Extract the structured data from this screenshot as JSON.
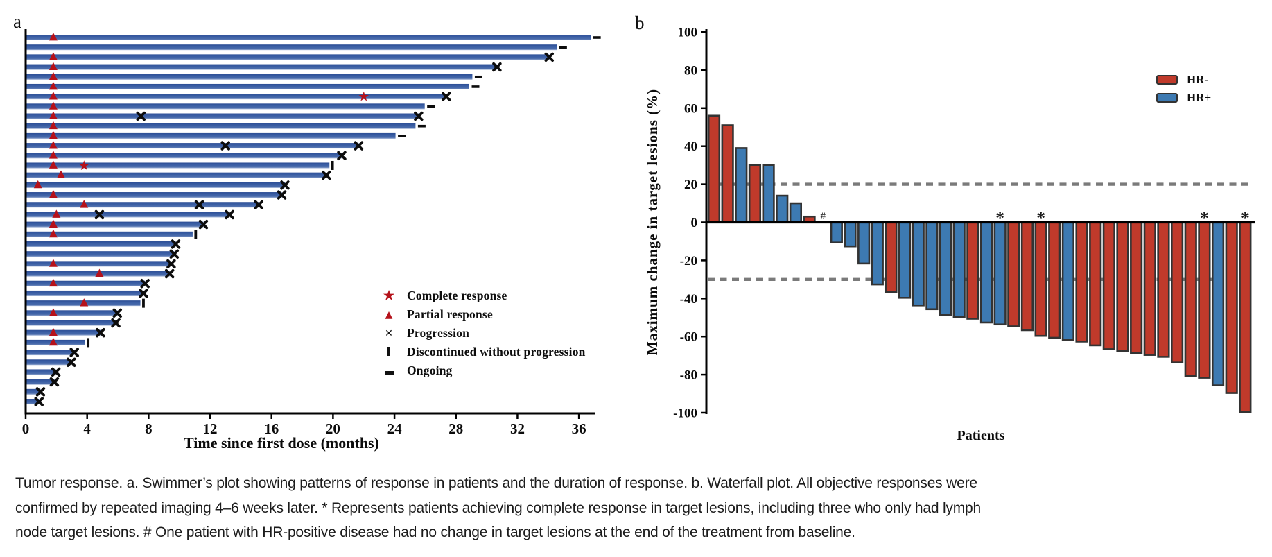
{
  "figure": {
    "panel_a_label": "a",
    "panel_b_label": "b"
  },
  "panel_a": {
    "x_axis_title": "Time since first dose (months)",
    "bar_color": "#3b5fa4",
    "legend": [
      {
        "icon": "complete-response-star-icon",
        "glyph": "★",
        "color": "#b5121b",
        "label": "Complete response"
      },
      {
        "icon": "partial-response-triangle-icon",
        "glyph": "▲",
        "color": "#b5121b",
        "label": "Partial response"
      },
      {
        "icon": "progression-x-icon",
        "glyph": "✕",
        "color": "#111111",
        "label": "Progression"
      },
      {
        "icon": "discontinued-bar-icon",
        "glyph": "",
        "color": "#111111",
        "label": "Discontinued without progression"
      },
      {
        "icon": "ongoing-dash-icon",
        "glyph": "",
        "color": "#111111",
        "label": "Ongoing"
      }
    ]
  },
  "panel_b": {
    "y_axis_title": "Maximum change in target lesions (%)",
    "x_axis_title": "Patients",
    "legend": [
      {
        "icon": "hr-negative-swatch",
        "label": "HR-",
        "color": "#c03a2b"
      },
      {
        "icon": "hr-positive-swatch",
        "label": "HR+",
        "color": "#3d7ab2"
      }
    ]
  },
  "caption": {
    "line1": "Tumor response. a. Swimmer’s plot showing patterns of response in patients and the duration of response. b. Waterfall plot. All objective responses were",
    "line2": "confirmed by repeated imaging 4–6 weeks later. * Represents patients achieving complete response in target lesions, including three who only had lymph",
    "line3": "node target lesions. # One patient with HR-positive disease had no change in target lesions at the end of the treatment from baseline."
  },
  "chart_data": [
    {
      "type": "bar",
      "variant": "swimmer",
      "title": "Swimmer plot of duration of response",
      "xlabel": "Time since first dose (months)",
      "ylabel": "",
      "xlim": [
        0,
        37.5
      ],
      "x_ticks": [
        0,
        4,
        8,
        12,
        16,
        20,
        24,
        28,
        32,
        36
      ],
      "grid": false,
      "bar_color_hex": "#3b5fa4",
      "bars": [
        {
          "months": 36.7,
          "end": "ongoing",
          "pr": 1.8
        },
        {
          "months": 34.5,
          "end": "ongoing"
        },
        {
          "months": 34.0,
          "end": "progression",
          "pr": 1.8
        },
        {
          "months": 30.6,
          "end": "progression",
          "pr": 1.8
        },
        {
          "months": 29.0,
          "end": "ongoing",
          "pr": 1.8
        },
        {
          "months": 28.8,
          "end": "ongoing",
          "pr": 1.8
        },
        {
          "months": 27.3,
          "end": "progression",
          "pr": 1.8,
          "cr": 22.0
        },
        {
          "months": 25.9,
          "end": "ongoing",
          "pr": 1.8
        },
        {
          "months": 25.5,
          "end": "progression",
          "pr": 1.8,
          "mid_x": 7.5
        },
        {
          "months": 25.3,
          "end": "ongoing",
          "pr": 1.8
        },
        {
          "months": 24.0,
          "end": "ongoing",
          "pr": 1.8
        },
        {
          "months": 21.6,
          "end": "progression",
          "pr": 1.8,
          "mid_x": 13.0
        },
        {
          "months": 20.5,
          "end": "progression",
          "pr": 1.8
        },
        {
          "months": 19.7,
          "end": "discontinued",
          "pr": 1.8,
          "cr": 3.8
        },
        {
          "months": 19.5,
          "end": "progression",
          "pr": 2.3
        },
        {
          "months": 16.8,
          "end": "progression",
          "pr": 0.8
        },
        {
          "months": 16.6,
          "end": "progression",
          "pr": 1.8
        },
        {
          "months": 15.1,
          "end": "progression",
          "pr": 3.8,
          "mid_x": 11.3
        },
        {
          "months": 13.2,
          "end": "progression",
          "pr": 2.0,
          "mid_x": 4.8
        },
        {
          "months": 11.5,
          "end": "progression",
          "pr": 1.8
        },
        {
          "months": 10.8,
          "end": "discontinued",
          "pr": 1.8
        },
        {
          "months": 9.7,
          "end": "progression"
        },
        {
          "months": 9.6,
          "end": "progression"
        },
        {
          "months": 9.4,
          "end": "progression",
          "pr": 1.8
        },
        {
          "months": 9.3,
          "end": "progression",
          "pr": 4.8
        },
        {
          "months": 7.7,
          "end": "progression",
          "pr": 1.8
        },
        {
          "months": 7.6,
          "end": "progression"
        },
        {
          "months": 7.4,
          "end": "discontinued",
          "pr": 3.8
        },
        {
          "months": 5.9,
          "end": "progression",
          "pr": 1.8
        },
        {
          "months": 5.8,
          "end": "progression"
        },
        {
          "months": 4.8,
          "end": "progression",
          "pr": 1.8
        },
        {
          "months": 3.8,
          "end": "discontinued",
          "pr": 1.8
        },
        {
          "months": 3.1,
          "end": "progression"
        },
        {
          "months": 2.9,
          "end": "progression"
        },
        {
          "months": 1.9,
          "end": "progression"
        },
        {
          "months": 1.8,
          "end": "progression"
        },
        {
          "months": 0.9,
          "end": "progression"
        },
        {
          "months": 0.8,
          "end": "progression"
        }
      ]
    },
    {
      "type": "bar",
      "variant": "waterfall",
      "title": "Waterfall plot of maximum change in target lesions",
      "xlabel": "Patients",
      "ylabel": "Maximum change in target lesions (%)",
      "ylim": [
        -100,
        100
      ],
      "y_ticks": [
        100,
        80,
        60,
        40,
        20,
        0,
        -20,
        -40,
        -60,
        -80,
        -100
      ],
      "reference_lines": [
        20,
        -30
      ],
      "grid": false,
      "legend_position": "top-right",
      "groups": {
        "HR-": "#c03a2b",
        "HR+": "#3d7ab2"
      },
      "patients": [
        {
          "value": 56,
          "group": "HR-"
        },
        {
          "value": 51,
          "group": "HR-"
        },
        {
          "value": 39,
          "group": "HR+"
        },
        {
          "value": 30,
          "group": "HR-"
        },
        {
          "value": 30,
          "group": "HR+"
        },
        {
          "value": 14,
          "group": "HR+"
        },
        {
          "value": 10,
          "group": "HR+"
        },
        {
          "value": 3,
          "group": "HR-"
        },
        {
          "value": 0,
          "group": "HR+",
          "mark": "#"
        },
        {
          "value": -11,
          "group": "HR+"
        },
        {
          "value": -13,
          "group": "HR+"
        },
        {
          "value": -22,
          "group": "HR+"
        },
        {
          "value": -33,
          "group": "HR+"
        },
        {
          "value": -37,
          "group": "HR-"
        },
        {
          "value": -40,
          "group": "HR+"
        },
        {
          "value": -44,
          "group": "HR+"
        },
        {
          "value": -46,
          "group": "HR+"
        },
        {
          "value": -49,
          "group": "HR+"
        },
        {
          "value": -50,
          "group": "HR+"
        },
        {
          "value": -51,
          "group": "HR-"
        },
        {
          "value": -53,
          "group": "HR+"
        },
        {
          "value": -54,
          "group": "HR+",
          "mark": "*"
        },
        {
          "value": -55,
          "group": "HR-"
        },
        {
          "value": -57,
          "group": "HR-"
        },
        {
          "value": -60,
          "group": "HR-",
          "mark": "*"
        },
        {
          "value": -61,
          "group": "HR-"
        },
        {
          "value": -62,
          "group": "HR+"
        },
        {
          "value": -63,
          "group": "HR-"
        },
        {
          "value": -65,
          "group": "HR-"
        },
        {
          "value": -67,
          "group": "HR-"
        },
        {
          "value": -68,
          "group": "HR-"
        },
        {
          "value": -69,
          "group": "HR-"
        },
        {
          "value": -70,
          "group": "HR-"
        },
        {
          "value": -71,
          "group": "HR-"
        },
        {
          "value": -74,
          "group": "HR-"
        },
        {
          "value": -81,
          "group": "HR-"
        },
        {
          "value": -82,
          "group": "HR-",
          "mark": "*"
        },
        {
          "value": -86,
          "group": "HR+"
        },
        {
          "value": -90,
          "group": "HR-"
        },
        {
          "value": -100,
          "group": "HR-",
          "mark": "*"
        }
      ]
    }
  ]
}
